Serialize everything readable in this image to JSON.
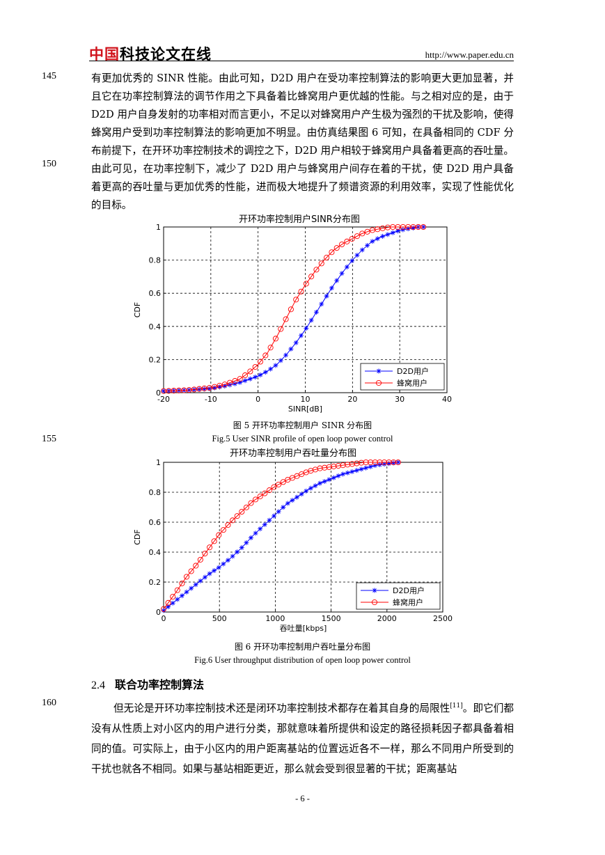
{
  "header": {
    "logo_red": "中国",
    "logo_black": "科技论文在线",
    "url": "http://www.paper.edu.cn"
  },
  "line_numbers": [
    "145",
    "150",
    "155",
    "160"
  ],
  "para1": "有更加优秀的 SINR 性能。由此可知，D2D 用户在受功率控制算法的影响更大更加显著，并且它在功率控制算法的调节作用之下具备着比蜂窝用户更优越的性能。与之相对应的是，由于 D2D 用户自身发射的功率相对而言更小，不足以对蜂窝用户产生极为强烈的干扰及影响，使得蜂窝用户受到功率控制算法的影响更加不明显。由仿真结果图 6 可知，在具备相同的 CDF 分布前提下，在开环功率控制技术的调控之下，D2D 用户相较于蜂窝用户具备着更高的吞吐量。由此可见，在功率控制下，减少了 D2D 用户与蜂窝用户间存在着的干扰，使 D2D 用户具备着更高的吞吐量与更加优秀的性能，进而极大地提升了频谱资源的利用效率，实现了性能优化的目标。",
  "figure5": {
    "caption_cn": "图 5  开环功率控制用户 SINR 分布图",
    "caption_en": "Fig.5 User SINR profile of open loop power control"
  },
  "figure6": {
    "caption_cn": "图 6  开环功率控制用户吞吐量分布图",
    "caption_en": "Fig.6 User throughput distribution of open loop power control"
  },
  "section": {
    "number": "2.4",
    "title": "联合功率控制算法"
  },
  "para2_text": "但无论是开环功率控制技术还是闭环功率控制技术都存在着其自身的局限性",
  "para2_ref": "[11]",
  "para2_rest": "。即它们都没有从性质上对小区内的用户进行分类，那就意味着所提供和设定的路径损耗因子都具备着相同的值。可实际上，由于小区内的用户距离基站的位置远近各不一样，那么不同用户所受到的干扰也就各不相同。如果与基站相距更近，那么就会受到很显著的干扰；距离基站",
  "page_number": "- 6 -",
  "chart_data": [
    {
      "type": "line",
      "title": "开环功率控制用户SINR分布图",
      "xlabel": "SINR[dB]",
      "ylabel": "CDF",
      "xlim": [
        -20,
        40
      ],
      "ylim": [
        0,
        1
      ],
      "xticks": [
        "-20",
        "-10",
        "0",
        "10",
        "20",
        "30",
        "40"
      ],
      "yticks": [
        "0",
        "0.2",
        "0.4",
        "0.6",
        "0.8",
        "1"
      ],
      "grid": true,
      "legend_position": "bottom-right",
      "series": [
        {
          "name": "D2D用户",
          "color": "#0000ff",
          "marker": "star",
          "x": [
            -20,
            -15,
            -10,
            -7,
            -4,
            -2,
            0,
            2,
            4,
            6,
            8,
            10,
            12,
            14,
            16,
            18,
            20,
            22,
            24,
            26,
            28,
            30,
            32,
            34,
            35
          ],
          "y": [
            0.01,
            0.015,
            0.025,
            0.04,
            0.06,
            0.08,
            0.1,
            0.13,
            0.17,
            0.23,
            0.3,
            0.38,
            0.47,
            0.56,
            0.65,
            0.73,
            0.8,
            0.86,
            0.91,
            0.94,
            0.96,
            0.98,
            0.99,
            1.0,
            1.0
          ]
        },
        {
          "name": "蜂窝用户",
          "color": "#ff0000",
          "marker": "circle",
          "x": [
            -20,
            -15,
            -10,
            -7,
            -4,
            -2,
            0,
            2,
            4,
            6,
            8,
            10,
            12,
            14,
            16,
            18,
            20,
            22,
            24,
            26,
            28,
            30,
            32,
            34,
            35
          ],
          "y": [
            0.01,
            0.015,
            0.03,
            0.05,
            0.08,
            0.12,
            0.17,
            0.24,
            0.34,
            0.45,
            0.56,
            0.65,
            0.73,
            0.8,
            0.86,
            0.9,
            0.93,
            0.96,
            0.98,
            0.99,
            1.0,
            1.0,
            1.0,
            1.0,
            1.0
          ]
        }
      ]
    },
    {
      "type": "line",
      "title": "开环功率控制用户吞吐量分布图",
      "xlabel": "吞吐量[kbps]",
      "ylabel": "CDF",
      "xlim": [
        0,
        2500
      ],
      "ylim": [
        0,
        1
      ],
      "xticks": [
        "0",
        "500",
        "1000",
        "1500",
        "2000",
        "2500"
      ],
      "yticks": [
        "0",
        "0.2",
        "0.4",
        "0.6",
        "0.8",
        "1"
      ],
      "grid": true,
      "legend_position": "bottom-right",
      "series": [
        {
          "name": "D2D用户",
          "color": "#0000ff",
          "marker": "star",
          "x": [
            0,
            100,
            200,
            300,
            400,
            500,
            600,
            700,
            800,
            900,
            1000,
            1100,
            1200,
            1300,
            1400,
            1500,
            1600,
            1700,
            1800,
            1900,
            2000,
            2100
          ],
          "y": [
            0.01,
            0.07,
            0.13,
            0.19,
            0.25,
            0.3,
            0.36,
            0.43,
            0.51,
            0.58,
            0.65,
            0.72,
            0.77,
            0.82,
            0.86,
            0.89,
            0.92,
            0.94,
            0.96,
            0.98,
            0.99,
            1.0
          ]
        },
        {
          "name": "蜂窝用户",
          "color": "#ff0000",
          "marker": "circle",
          "x": [
            0,
            100,
            200,
            300,
            400,
            500,
            600,
            700,
            800,
            900,
            1000,
            1100,
            1200,
            1300,
            1400,
            1500,
            1600,
            1700,
            1800,
            1900,
            2000,
            2100
          ],
          "y": [
            0.02,
            0.12,
            0.23,
            0.32,
            0.42,
            0.52,
            0.6,
            0.67,
            0.74,
            0.79,
            0.84,
            0.88,
            0.91,
            0.94,
            0.96,
            0.97,
            0.98,
            0.99,
            1.0,
            1.0,
            1.0,
            1.0
          ]
        }
      ]
    }
  ]
}
